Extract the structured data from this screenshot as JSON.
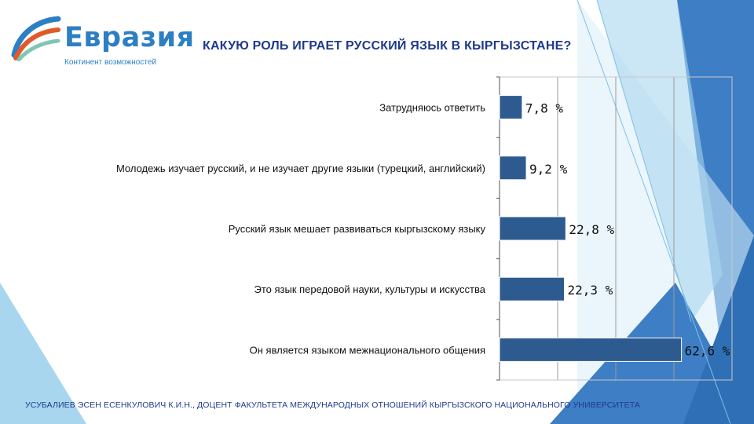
{
  "logo": {
    "name": "Евразия",
    "tagline": "Континент возможностей"
  },
  "slide_title": "КАКУЮ РОЛЬ ИГРАЕТ РУССКИЙ ЯЗЫК В КЫРГЫЗСТАНЕ?",
  "footer": "УСУБАЛИЕВ ЭСЕН ЕСЕНКУЛОВИЧ К.И.Н., ДОЦЕНТ ФАКУЛЬТЕТА МЕЖДУНАРОДНЫХ ОТНОШЕНИЙ КЫРГЫЗСКОГО НАЦИОНАЛЬНОГО УНИВЕРСИТЕТА",
  "colors": {
    "bar": "#2e5b8f",
    "title": "#1f3a8c",
    "accent_blue": "#2c7fc3",
    "deco_dark": "#3e7ec5",
    "deco_light": "#a8d6ef"
  },
  "chart_data": {
    "type": "bar",
    "orientation": "horizontal",
    "categories": [
      "Затрудняюсь ответить",
      "Молодежь изучает русский, и не изучает другие языки (турецкий, английский)",
      "Русский язык мешает развиваться кыргызскому языку",
      "Это язык передовой науки, культуры и искусства",
      "Он является языком межнационального общения"
    ],
    "values": [
      7.8,
      9.2,
      22.8,
      22.3,
      62.6
    ],
    "data_labels": [
      "7,8 %",
      "9,2 %",
      "22,8 %",
      "22,3 %",
      "62,6 %"
    ],
    "xlim": [
      0,
      80
    ],
    "grid": true,
    "title": "",
    "xlabel": "",
    "ylabel": ""
  }
}
